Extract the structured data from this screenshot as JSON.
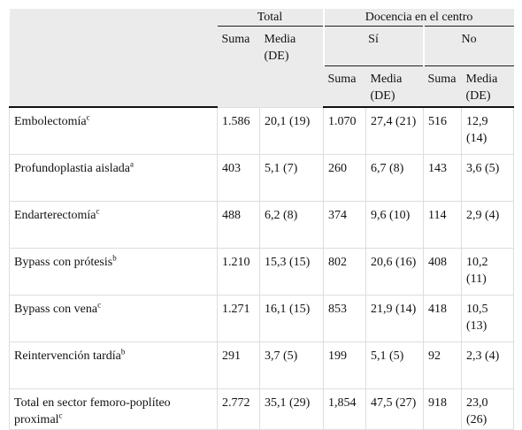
{
  "header": {
    "total": "Total",
    "docencia": "Docencia en el centro",
    "si": "Sí",
    "no": "No",
    "subheaders": [
      "Suma",
      "Media (DE)",
      "Suma",
      "Media (DE)",
      "Suma",
      "Media (DE)"
    ]
  },
  "table": {
    "rows": [
      {
        "label": "Embolectomía",
        "note": "c",
        "cells": [
          "1.586",
          "20,1 (19)",
          "1.070",
          "27,4 (21)",
          "516",
          "12,9 (14)"
        ]
      },
      {
        "label": "Profundoplastia aislada",
        "note": "a",
        "cells": [
          "403",
          "5,1 (7)",
          "260",
          "6,7 (8)",
          "143",
          "3,6 (5)"
        ]
      },
      {
        "label": "Endarterectomía",
        "note": "c",
        "cells": [
          "488",
          "6,2 (8)",
          "374",
          "9,6 (10)",
          "114",
          "2,9 (4)"
        ]
      },
      {
        "label": "Bypass con prótesis",
        "note": "b",
        "cells": [
          "1.210",
          "15,3 (15)",
          "802",
          "20,6 (16)",
          "408",
          "10,2 (11)"
        ]
      },
      {
        "label": "Bypass con vena",
        "note": "c",
        "cells": [
          "1.271",
          "16,1 (15)",
          "853",
          "21,9 (14)",
          "418",
          "10,5 (13)"
        ]
      },
      {
        "label": "Reintervención tardía",
        "note": "b",
        "cells": [
          "291",
          "3,7 (5)",
          "199",
          "5,1 (5)",
          "92",
          "2,3 (4)"
        ]
      },
      {
        "label": "Total en sector femoro-poplíteo proximal",
        "note": "c",
        "cells": [
          "2.772",
          "35,1 (29)",
          "1,854",
          "47,5 (27)",
          "918",
          "23,0 (26)"
        ]
      }
    ]
  }
}
